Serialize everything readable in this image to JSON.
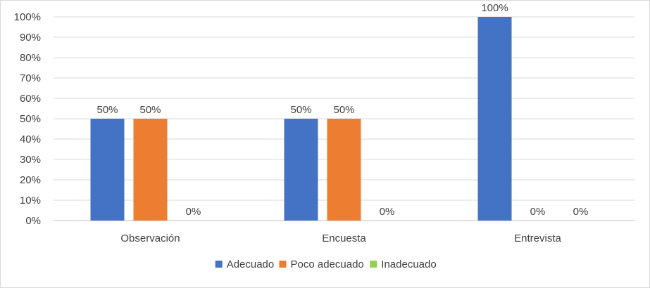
{
  "chart_data": {
    "type": "bar",
    "title": "",
    "xlabel": "",
    "ylabel": "",
    "categories": [
      "Observación",
      "Encuesta",
      "Entrevista"
    ],
    "series": [
      {
        "name": "Adecuado",
        "color": "#4472c4",
        "values": [
          50,
          50,
          100
        ],
        "labels": [
          "50%",
          "50%",
          "100%"
        ]
      },
      {
        "name": "Poco adecuado",
        "color": "#ed7d31",
        "values": [
          50,
          50,
          0
        ],
        "labels": [
          "50%",
          "50%",
          "0%"
        ]
      },
      {
        "name": "Inadecuado",
        "color": "#92d050",
        "values": [
          0,
          0,
          0
        ],
        "labels": [
          "0%",
          "0%",
          "0%"
        ]
      }
    ],
    "ylim": [
      0,
      100
    ],
    "yticks": [
      "0%",
      "10%",
      "20%",
      "30%",
      "40%",
      "50%",
      "60%",
      "70%",
      "80%",
      "90%",
      "100%"
    ],
    "grid": true,
    "legend_position": "bottom"
  }
}
